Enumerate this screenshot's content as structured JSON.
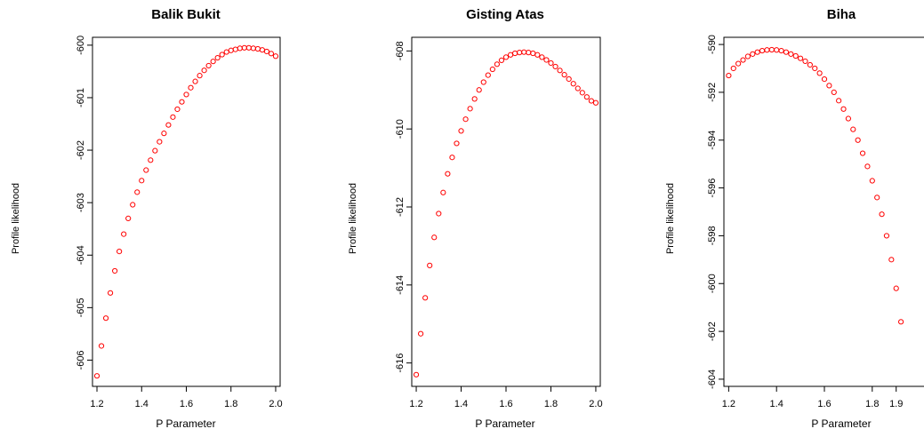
{
  "chart_data": [
    {
      "type": "scatter",
      "title": "Balik Bukit",
      "xlabel": "P Parameter",
      "ylabel": "Profile likelihood",
      "xlim": [
        1.18,
        2.02
      ],
      "ylim": [
        -606.5,
        -599.85
      ],
      "x_ticks": [
        "1.2",
        "1.4",
        "1.6",
        "1.8",
        "2.0"
      ],
      "y_ticks": [
        "-606",
        "-605",
        "-604",
        "-603",
        "-602",
        "-601",
        "-600"
      ],
      "series": [
        {
          "color": "#ff0000",
          "x": [
            1.2,
            1.22,
            1.24,
            1.26,
            1.28,
            1.3,
            1.32,
            1.34,
            1.36,
            1.38,
            1.4,
            1.42,
            1.44,
            1.46,
            1.48,
            1.5,
            1.52,
            1.54,
            1.56,
            1.58,
            1.6,
            1.62,
            1.64,
            1.66,
            1.68,
            1.7,
            1.72,
            1.74,
            1.76,
            1.78,
            1.8,
            1.82,
            1.84,
            1.86,
            1.88,
            1.9,
            1.92,
            1.94,
            1.96,
            1.98,
            2.0
          ],
          "y": [
            -606.3,
            -605.73,
            -605.2,
            -604.72,
            -604.3,
            -603.93,
            -603.6,
            -603.3,
            -603.04,
            -602.8,
            -602.58,
            -602.38,
            -602.19,
            -602.01,
            -601.84,
            -601.68,
            -601.52,
            -601.37,
            -601.22,
            -601.08,
            -600.94,
            -600.81,
            -600.69,
            -600.58,
            -600.48,
            -600.39,
            -600.31,
            -600.24,
            -600.18,
            -600.13,
            -600.1,
            -600.08,
            -600.06,
            -600.05,
            -600.05,
            -600.06,
            -600.07,
            -600.09,
            -600.12,
            -600.16,
            -600.21
          ]
        }
      ]
    },
    {
      "type": "scatter",
      "title": "Gisting Atas",
      "xlabel": "P Parameter",
      "ylabel": "Profile likelihood",
      "xlim": [
        1.18,
        2.02
      ],
      "ylim": [
        -616.6,
        -607.65
      ],
      "x_ticks": [
        "1.2",
        "1.4",
        "1.6",
        "1.8",
        "2.0"
      ],
      "y_ticks": [
        "-616",
        "-614",
        "-612",
        "-610",
        "-608"
      ],
      "series": [
        {
          "color": "#ff0000",
          "x": [
            1.2,
            1.22,
            1.24,
            1.26,
            1.28,
            1.3,
            1.32,
            1.34,
            1.36,
            1.38,
            1.4,
            1.42,
            1.44,
            1.46,
            1.48,
            1.5,
            1.52,
            1.54,
            1.56,
            1.58,
            1.6,
            1.62,
            1.64,
            1.66,
            1.68,
            1.7,
            1.72,
            1.74,
            1.76,
            1.78,
            1.8,
            1.82,
            1.84,
            1.86,
            1.88,
            1.9,
            1.92,
            1.94,
            1.96,
            1.98,
            2.0
          ],
          "y": [
            -616.3,
            -615.25,
            -614.33,
            -613.5,
            -612.78,
            -612.17,
            -611.63,
            -611.15,
            -610.73,
            -610.37,
            -610.05,
            -609.75,
            -609.48,
            -609.23,
            -609.0,
            -608.8,
            -608.62,
            -608.47,
            -608.34,
            -608.24,
            -608.16,
            -608.1,
            -608.06,
            -608.04,
            -608.03,
            -608.04,
            -608.06,
            -608.1,
            -608.16,
            -608.23,
            -608.31,
            -608.4,
            -608.5,
            -608.61,
            -608.72,
            -608.84,
            -608.96,
            -609.07,
            -609.18,
            -609.28,
            -609.33
          ]
        }
      ]
    },
    {
      "type": "scatter",
      "title": "Biha",
      "xlabel": "P Parameter",
      "ylabel": "Profile likelihood",
      "xlim": [
        1.18,
        2.02
      ],
      "ylim": [
        -604.3,
        -589.7
      ],
      "x_ticks": [
        "1.2",
        "1.4",
        "1.6",
        "1.8",
        "1.9"
      ],
      "y_ticks": [
        "-604",
        "-602",
        "-600",
        "-598",
        "-596",
        "-594",
        "-592",
        "-590"
      ],
      "series": [
        {
          "color": "#ff0000",
          "x": [
            1.2,
            1.22,
            1.24,
            1.26,
            1.28,
            1.3,
            1.32,
            1.34,
            1.36,
            1.38,
            1.4,
            1.42,
            1.44,
            1.46,
            1.48,
            1.5,
            1.52,
            1.54,
            1.56,
            1.58,
            1.6,
            1.62,
            1.64,
            1.66,
            1.68,
            1.7,
            1.72,
            1.74,
            1.76,
            1.78,
            1.8,
            1.82,
            1.84,
            1.86,
            1.88,
            1.9,
            1.92
          ],
          "y": [
            -591.3,
            -591.0,
            -590.8,
            -590.65,
            -590.5,
            -590.4,
            -590.32,
            -590.26,
            -590.23,
            -590.22,
            -590.23,
            -590.26,
            -590.32,
            -590.4,
            -590.48,
            -590.58,
            -590.7,
            -590.85,
            -591.0,
            -591.2,
            -591.45,
            -591.72,
            -592.0,
            -592.35,
            -592.7,
            -593.1,
            -593.55,
            -594.0,
            -594.55,
            -595.1,
            -595.7,
            -596.4,
            -597.1,
            -598.0,
            -599.0,
            -600.2,
            -601.6
          ]
        }
      ]
    }
  ]
}
